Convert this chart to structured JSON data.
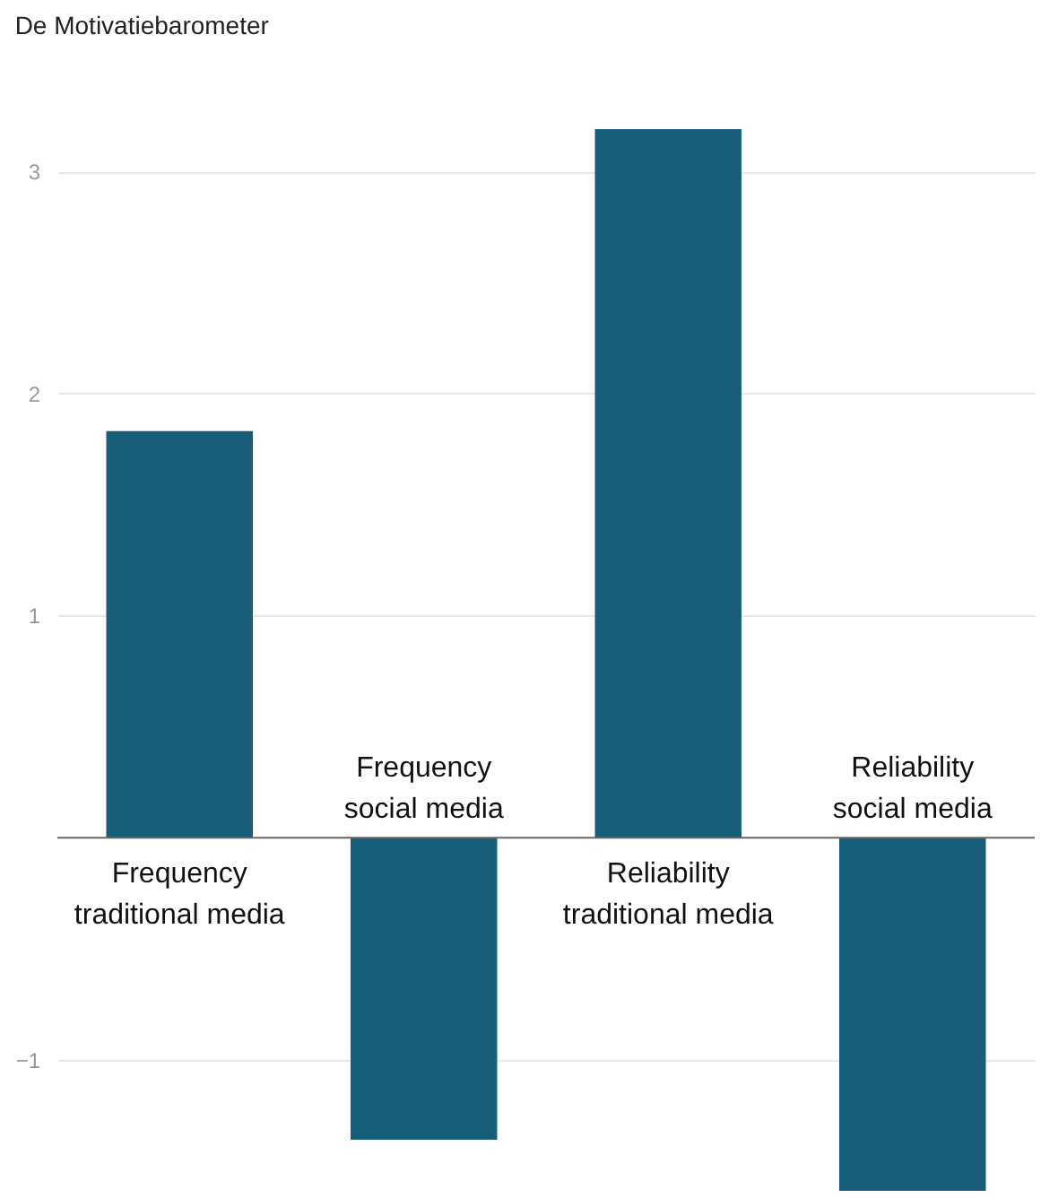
{
  "chart_data": {
    "type": "bar",
    "title": "De Motivatiebarometer",
    "categories": [
      "Frequency traditional media",
      "Frequency social media",
      "Reliability traditional media",
      "Reliability social media"
    ],
    "values": [
      1.83,
      -1.36,
      3.19,
      -1.59
    ],
    "color": "#175e78",
    "ylim": [
      -1.59,
      3.19
    ],
    "yticks": [
      -1,
      1,
      2,
      3
    ],
    "grid": "y"
  }
}
